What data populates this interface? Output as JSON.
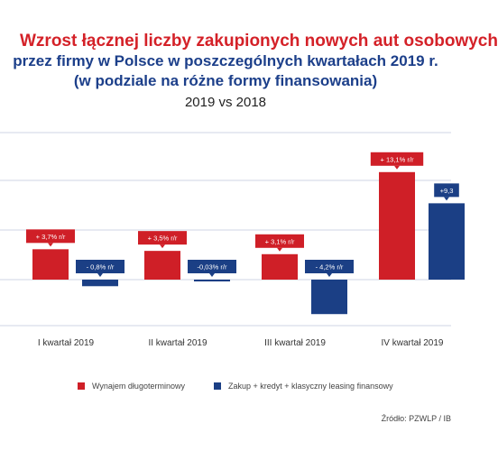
{
  "title": {
    "line1": "Wzrost łącznej liczby zakupionych nowych aut osobowych",
    "line2": "przez firmy w Polsce w poszczególnych kwartałach 2019 r.",
    "line3": "(w podziale na różne formy finansowania)",
    "subtitle": "2019 vs 2018"
  },
  "colors": {
    "red": "#cf1f27",
    "blue": "#1b3f85",
    "grid": "#cfd6e6"
  },
  "chart_data": {
    "type": "bar",
    "categories": [
      "I kwartał 2019",
      "II kwartał 2019",
      "III kwartał 2019",
      "IV kwartał 2019"
    ],
    "series": [
      {
        "name": "Wynajem długoterminowy",
        "values": [
          3.7,
          3.5,
          3.1,
          13.1
        ],
        "labels": [
          "+ 3,7% r/r",
          "+ 3,5% r/r",
          "+ 3,1% r/r",
          "+ 13,1% r/r"
        ]
      },
      {
        "name": "Zakup + kredyt + klasyczny leasing finansowy",
        "values": [
          -0.8,
          -0.03,
          -4.2,
          9.3
        ],
        "labels": [
          "- 0,8% r/r",
          "-0,03% r/r",
          "- 4,2% r/r",
          "+9,3"
        ]
      }
    ],
    "ylim": [
      -4.7,
      15
    ],
    "grid": true,
    "legend_position": "bottom"
  },
  "legend": [
    {
      "label": "Wynajem długoterminowy",
      "color": "#cf1f27"
    },
    {
      "label": "Zakup + kredyt + klasyczny leasing finansowy",
      "color": "#1b3f85"
    }
  ],
  "source": "Źródło: PZWLP / IB"
}
